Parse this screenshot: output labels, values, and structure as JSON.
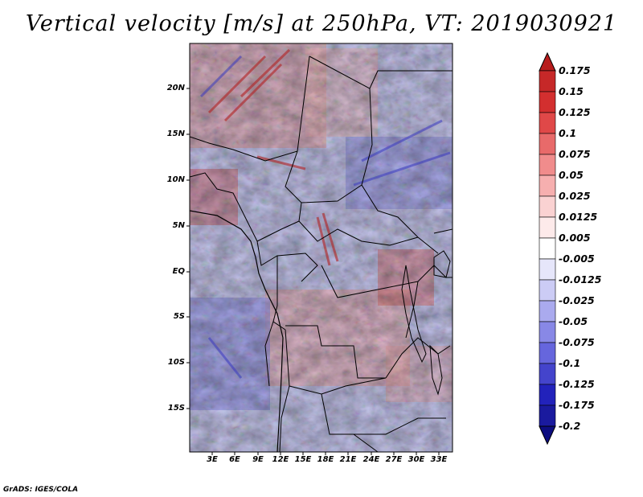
{
  "title": "Vertical velocity [m/s] at 250hPa, VT: 2019030921",
  "credit": "GrADS: IGES/COLA",
  "map": {
    "lat_ticks": [
      "20N",
      "15N",
      "10N",
      "5N",
      "EQ",
      "5S",
      "10S",
      "15S"
    ],
    "lon_ticks": [
      "3E",
      "6E",
      "9E",
      "12E",
      "15E",
      "18E",
      "21E",
      "24E",
      "27E",
      "30E",
      "33E"
    ]
  },
  "colorbar": {
    "labels": [
      "0.175",
      "0.15",
      "0.125",
      "0.1",
      "0.075",
      "0.05",
      "0.025",
      "0.0125",
      "0.005",
      "-0.005",
      "-0.0125",
      "-0.025",
      "-0.05",
      "-0.075",
      "-0.1",
      "-0.125",
      "-0.175",
      "-0.2"
    ],
    "colors": [
      "#b71c1c",
      "#c62828",
      "#d32f2f",
      "#e04848",
      "#e86a6a",
      "#f08c8c",
      "#f6afaf",
      "#fad2d2",
      "#fdeaea",
      "#ffffff",
      "#e6e6fa",
      "#ccccf5",
      "#aaaaee",
      "#8888e6",
      "#6666dd",
      "#4444cc",
      "#2222bb",
      "#1a1a9e",
      "#0d0d80"
    ]
  }
}
